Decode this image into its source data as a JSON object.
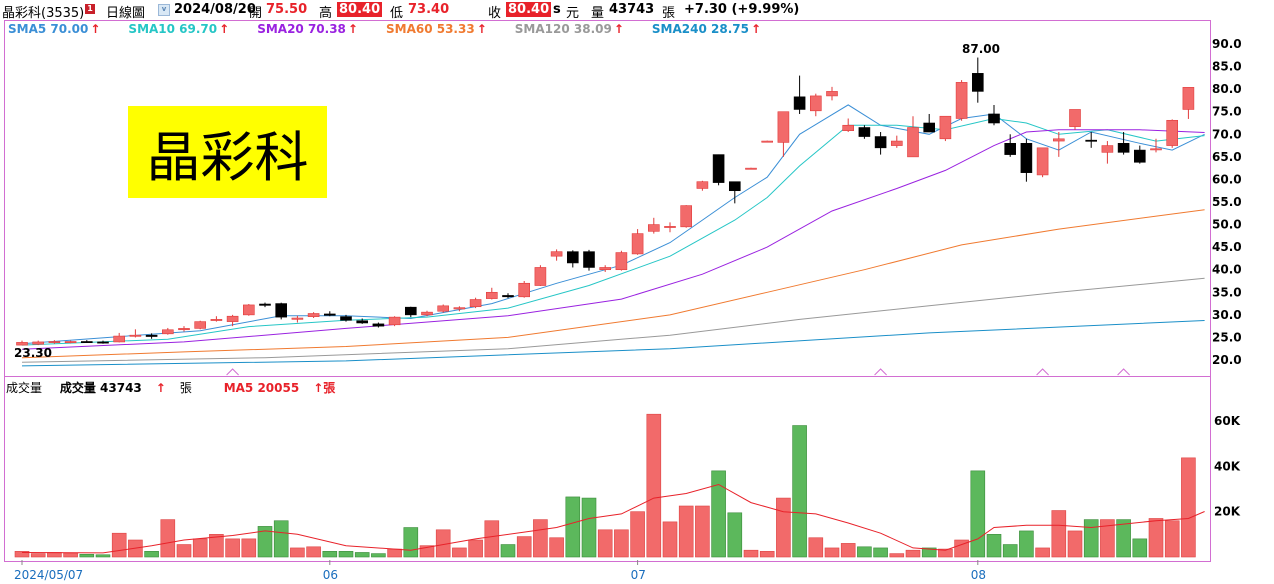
{
  "header": {
    "stock_name": "晶彩科(3535)",
    "chart_type_label": "日線圖",
    "date": "2024/08/20",
    "open_label": "開",
    "open_value": "75.50",
    "high_label": "高",
    "high_value": "80.40",
    "low_label": "低",
    "low_value": "73.40",
    "close_label": "收",
    "close_value": "80.40",
    "s_label": "s",
    "currency": "元",
    "volume_label": "量",
    "volume_value": "43743",
    "volume_unit": "張",
    "change": "+7.30 (+9.99%)"
  },
  "sma_legend": [
    {
      "label": "SMA5 70.00",
      "color": "#3b8fd6"
    },
    {
      "label": "SMA10 69.70",
      "color": "#26c6c6"
    },
    {
      "label": "SMA20 70.38",
      "color": "#9a22e0"
    },
    {
      "label": "SMA60 53.33",
      "color": "#f07a30"
    },
    {
      "label": "SMA120 38.09",
      "color": "#999999"
    },
    {
      "label": "SMA240 28.75",
      "color": "#1a8fc8"
    }
  ],
  "stamp": "晶彩科",
  "price_axis": [
    "90.0",
    "85.0",
    "80.0",
    "75.0",
    "70.0",
    "65.0",
    "60.0",
    "55.0",
    "50.0",
    "45.0",
    "40.0",
    "35.0",
    "30.0",
    "25.0",
    "20.0"
  ],
  "max_label": "87.00",
  "min_label": "23.30",
  "volume_legend": {
    "title": "成交量",
    "vol_label": "成交量 43743",
    "unit": "張",
    "ma5_label": "MA5 20055"
  },
  "volume_axis": [
    "60K",
    "40K",
    "20K"
  ],
  "date_axis": [
    "2024/05/07",
    "06",
    "07",
    "08"
  ],
  "chart_data": {
    "type": "candlestick",
    "ylim": [
      18.5,
      93
    ],
    "volume_ylim": [
      0,
      70000
    ],
    "candles": [
      {
        "o": 23.3,
        "h": 24.3,
        "l": 23.3,
        "c": 23.9,
        "v": 2500
      },
      {
        "o": 23.5,
        "h": 24.3,
        "l": 23.3,
        "c": 24.0,
        "v": 1500
      },
      {
        "o": 23.9,
        "h": 24.4,
        "l": 23.6,
        "c": 24.1,
        "v": 2000
      },
      {
        "o": 24.0,
        "h": 24.3,
        "l": 23.7,
        "c": 24.1,
        "v": 1800
      },
      {
        "o": 24.1,
        "h": 24.4,
        "l": 23.8,
        "c": 24.0,
        "v": 1200
      },
      {
        "o": 24.0,
        "h": 24.3,
        "l": 23.6,
        "c": 23.8,
        "v": 1000
      },
      {
        "o": 24.0,
        "h": 26.0,
        "l": 23.9,
        "c": 25.3,
        "v": 10500
      },
      {
        "o": 25.3,
        "h": 26.8,
        "l": 25.0,
        "c": 25.5,
        "v": 7500
      },
      {
        "o": 25.5,
        "h": 25.9,
        "l": 24.7,
        "c": 25.2,
        "v": 2500
      },
      {
        "o": 25.8,
        "h": 27.1,
        "l": 25.6,
        "c": 26.7,
        "v": 16500
      },
      {
        "o": 26.7,
        "h": 27.5,
        "l": 26.3,
        "c": 27.0,
        "v": 5500
      },
      {
        "o": 27.0,
        "h": 28.7,
        "l": 26.8,
        "c": 28.5,
        "v": 8000
      },
      {
        "o": 28.8,
        "h": 29.7,
        "l": 28.5,
        "c": 29.0,
        "v": 10000
      },
      {
        "o": 28.5,
        "h": 30.0,
        "l": 27.5,
        "c": 29.7,
        "v": 8000
      },
      {
        "o": 30.0,
        "h": 32.4,
        "l": 29.8,
        "c": 32.2,
        "v": 8000
      },
      {
        "o": 32.4,
        "h": 32.7,
        "l": 31.7,
        "c": 32.1,
        "v": 13500
      },
      {
        "o": 32.5,
        "h": 32.7,
        "l": 29.0,
        "c": 29.5,
        "v": 16000
      },
      {
        "o": 29.0,
        "h": 29.8,
        "l": 28.3,
        "c": 29.3,
        "v": 4000
      },
      {
        "o": 29.6,
        "h": 30.6,
        "l": 29.3,
        "c": 30.3,
        "v": 4500
      },
      {
        "o": 30.2,
        "h": 30.8,
        "l": 29.7,
        "c": 29.9,
        "v": 2500
      },
      {
        "o": 29.6,
        "h": 30.0,
        "l": 28.5,
        "c": 28.8,
        "v": 2500
      },
      {
        "o": 28.7,
        "h": 29.2,
        "l": 28.0,
        "c": 28.2,
        "v": 2000
      },
      {
        "o": 28.0,
        "h": 28.3,
        "l": 27.2,
        "c": 27.5,
        "v": 1500
      },
      {
        "o": 27.8,
        "h": 29.7,
        "l": 27.5,
        "c": 29.5,
        "v": 3500
      },
      {
        "o": 31.7,
        "h": 31.8,
        "l": 29.5,
        "c": 30.0,
        "v": 13000
      },
      {
        "o": 30.0,
        "h": 30.9,
        "l": 29.7,
        "c": 30.6,
        "v": 5000
      },
      {
        "o": 30.8,
        "h": 32.3,
        "l": 30.5,
        "c": 32.0,
        "v": 12000
      },
      {
        "o": 31.3,
        "h": 31.9,
        "l": 30.8,
        "c": 31.6,
        "v": 4000
      },
      {
        "o": 31.8,
        "h": 33.8,
        "l": 31.5,
        "c": 33.4,
        "v": 7500
      },
      {
        "o": 33.6,
        "h": 36.0,
        "l": 33.4,
        "c": 35.0,
        "v": 16000
      },
      {
        "o": 34.3,
        "h": 34.8,
        "l": 33.7,
        "c": 34.0,
        "v": 5500
      },
      {
        "o": 34.0,
        "h": 37.5,
        "l": 33.8,
        "c": 37.0,
        "v": 9000
      },
      {
        "o": 36.5,
        "h": 41.0,
        "l": 36.4,
        "c": 40.5,
        "v": 16500
      },
      {
        "o": 43.0,
        "h": 44.5,
        "l": 42.0,
        "c": 44.0,
        "v": 8500
      },
      {
        "o": 44.0,
        "h": 44.3,
        "l": 40.5,
        "c": 41.5,
        "v": 26500
      },
      {
        "o": 44.0,
        "h": 44.4,
        "l": 39.8,
        "c": 40.5,
        "v": 26000
      },
      {
        "o": 40.0,
        "h": 41.0,
        "l": 39.5,
        "c": 40.5,
        "v": 12000
      },
      {
        "o": 40.0,
        "h": 44.2,
        "l": 39.8,
        "c": 43.8,
        "v": 12000
      },
      {
        "o": 43.5,
        "h": 49.0,
        "l": 43.3,
        "c": 48.0,
        "v": 20000
      },
      {
        "o": 48.5,
        "h": 51.5,
        "l": 48.0,
        "c": 50.0,
        "v": 63000
      },
      {
        "o": 49.5,
        "h": 50.5,
        "l": 48.3,
        "c": 49.6,
        "v": 15500
      },
      {
        "o": 49.5,
        "h": 54.3,
        "l": 49.3,
        "c": 54.2,
        "v": 22500
      },
      {
        "o": 58.0,
        "h": 59.7,
        "l": 57.5,
        "c": 59.5,
        "v": 22500
      },
      {
        "o": 65.5,
        "h": 65.5,
        "l": 58.7,
        "c": 59.3,
        "v": 38000
      },
      {
        "o": 59.5,
        "h": 59.5,
        "l": 54.7,
        "c": 57.5,
        "v": 19500
      },
      {
        "o": 62.5,
        "h": 62.6,
        "l": 62.4,
        "c": 62.5,
        "v": 3000
      },
      {
        "o": 68.5,
        "h": 68.6,
        "l": 68.4,
        "c": 68.5,
        "v": 2500
      },
      {
        "o": 68.2,
        "h": 75.0,
        "l": 65.0,
        "c": 75.0,
        "v": 26000
      },
      {
        "o": 78.3,
        "h": 83.0,
        "l": 74.5,
        "c": 75.5,
        "v": 58000
      },
      {
        "o": 75.2,
        "h": 79.0,
        "l": 74.0,
        "c": 78.5,
        "v": 8500
      },
      {
        "o": 78.5,
        "h": 80.5,
        "l": 77.5,
        "c": 79.5,
        "v": 4000
      },
      {
        "o": 70.8,
        "h": 73.5,
        "l": 70.5,
        "c": 72.0,
        "v": 6000
      },
      {
        "o": 71.5,
        "h": 72.0,
        "l": 69.0,
        "c": 69.5,
        "v": 4500
      },
      {
        "o": 69.5,
        "h": 70.5,
        "l": 65.5,
        "c": 67.0,
        "v": 4000
      },
      {
        "o": 67.5,
        "h": 69.7,
        "l": 67.0,
        "c": 68.5,
        "v": 1500
      },
      {
        "o": 65.0,
        "h": 74.0,
        "l": 65.0,
        "c": 71.5,
        "v": 3000
      },
      {
        "o": 72.5,
        "h": 74.5,
        "l": 70.5,
        "c": 70.5,
        "v": 4000
      },
      {
        "o": 69.0,
        "h": 74.0,
        "l": 68.5,
        "c": 74.0,
        "v": 3500
      },
      {
        "o": 73.5,
        "h": 82.0,
        "l": 73.0,
        "c": 81.5,
        "v": 7500
      },
      {
        "o": 83.5,
        "h": 87.0,
        "l": 77.0,
        "c": 79.5,
        "v": 38000
      },
      {
        "o": 74.5,
        "h": 76.5,
        "l": 72.0,
        "c": 72.5,
        "v": 10000
      },
      {
        "o": 68.0,
        "h": 70.0,
        "l": 65.0,
        "c": 65.5,
        "v": 5500
      },
      {
        "o": 68.0,
        "h": 69.0,
        "l": 59.5,
        "c": 61.5,
        "v": 11500
      },
      {
        "o": 61.0,
        "h": 67.0,
        "l": 60.5,
        "c": 67.0,
        "v": 4000
      },
      {
        "o": 68.5,
        "h": 70.5,
        "l": 65.0,
        "c": 69.0,
        "v": 20500
      },
      {
        "o": 71.7,
        "h": 75.5,
        "l": 71.0,
        "c": 75.5,
        "v": 11500
      },
      {
        "o": 68.7,
        "h": 70.5,
        "l": 67.0,
        "c": 68.5,
        "v": 16500
      },
      {
        "o": 66.0,
        "h": 68.5,
        "l": 63.5,
        "c": 67.5,
        "v": 16500
      },
      {
        "o": 68.0,
        "h": 70.5,
        "l": 65.5,
        "c": 66.0,
        "v": 16500
      },
      {
        "o": 66.5,
        "h": 67.5,
        "l": 63.5,
        "c": 63.8,
        "v": 8000
      },
      {
        "o": 66.8,
        "h": 69.0,
        "l": 66.0,
        "c": 66.8,
        "v": 17000
      },
      {
        "o": 67.5,
        "h": 73.3,
        "l": 67.0,
        "c": 73.1,
        "v": 16000
      },
      {
        "o": 75.5,
        "h": 80.4,
        "l": 73.4,
        "c": 80.4,
        "v": 43743
      }
    ],
    "sma_series": {
      "SMA5": [
        [
          0,
          23.6
        ],
        [
          11,
          26.5
        ],
        [
          16,
          29.8
        ],
        [
          20,
          29.8
        ],
        [
          24,
          29.2
        ],
        [
          29,
          32.5
        ],
        [
          33,
          37.0
        ],
        [
          37,
          41.0
        ],
        [
          40,
          46.0
        ],
        [
          42,
          51.0
        ],
        [
          44,
          56.0
        ],
        [
          46,
          60.5
        ],
        [
          48,
          70.0
        ],
        [
          51,
          76.5
        ],
        [
          53,
          72.0
        ],
        [
          56,
          70.0
        ],
        [
          58,
          73.5
        ],
        [
          60,
          74.5
        ],
        [
          62,
          69.0
        ],
        [
          64,
          66.5
        ],
        [
          66,
          70.5
        ],
        [
          69,
          68.0
        ],
        [
          71,
          66.5
        ],
        [
          73,
          70.0
        ]
      ],
      "SMA10": [
        [
          0,
          23.3
        ],
        [
          9,
          24.6
        ],
        [
          14,
          27.4
        ],
        [
          20,
          28.8
        ],
        [
          25,
          29.5
        ],
        [
          30,
          31.5
        ],
        [
          35,
          36.5
        ],
        [
          40,
          43.0
        ],
        [
          44,
          51.0
        ],
        [
          46,
          56.0
        ],
        [
          48,
          63.0
        ],
        [
          51,
          72.0
        ],
        [
          54,
          72.0
        ],
        [
          57,
          71.0
        ],
        [
          60,
          73.5
        ],
        [
          62,
          72.5
        ],
        [
          64,
          70.0
        ],
        [
          67,
          71.0
        ],
        [
          70,
          68.5
        ],
        [
          73,
          69.7
        ]
      ],
      "SMA20": [
        [
          0,
          22.4
        ],
        [
          10,
          24.0
        ],
        [
          20,
          27.0
        ],
        [
          30,
          29.8
        ],
        [
          37,
          33.5
        ],
        [
          42,
          39.0
        ],
        [
          46,
          45.0
        ],
        [
          50,
          53.0
        ],
        [
          54,
          58.0
        ],
        [
          57,
          62.0
        ],
        [
          60,
          67.5
        ],
        [
          62,
          70.5
        ],
        [
          64,
          71.0
        ],
        [
          66,
          71.0
        ],
        [
          69,
          71.0
        ],
        [
          73,
          70.4
        ]
      ],
      "SMA60": [
        [
          0,
          20.5
        ],
        [
          10,
          21.8
        ],
        [
          20,
          23.0
        ],
        [
          30,
          25.0
        ],
        [
          40,
          30.0
        ],
        [
          46,
          35.0
        ],
        [
          52,
          40.0
        ],
        [
          58,
          45.5
        ],
        [
          64,
          49.0
        ],
        [
          73,
          53.3
        ]
      ],
      "SMA120": [
        [
          0,
          19.5
        ],
        [
          15,
          20.5
        ],
        [
          30,
          22.5
        ],
        [
          40,
          25.5
        ],
        [
          48,
          29.0
        ],
        [
          56,
          32.0
        ],
        [
          64,
          35.0
        ],
        [
          73,
          38.1
        ]
      ],
      "SMA240": [
        [
          0,
          18.7
        ],
        [
          20,
          19.8
        ],
        [
          40,
          22.5
        ],
        [
          56,
          26.0
        ],
        [
          73,
          28.75
        ]
      ]
    },
    "volume_ma5": [
      [
        0,
        2000
      ],
      [
        5,
        1800
      ],
      [
        8,
        5000
      ],
      [
        10,
        7500
      ],
      [
        13,
        9500
      ],
      [
        15,
        11500
      ],
      [
        17,
        10000
      ],
      [
        20,
        5000
      ],
      [
        24,
        3000
      ],
      [
        28,
        8000
      ],
      [
        31,
        11000
      ],
      [
        33,
        13000
      ],
      [
        35,
        17000
      ],
      [
        37,
        19000
      ],
      [
        39,
        26000
      ],
      [
        41,
        28000
      ],
      [
        43,
        32000
      ],
      [
        45,
        24000
      ],
      [
        47,
        20000
      ],
      [
        49,
        19000
      ],
      [
        51,
        15000
      ],
      [
        53,
        10500
      ],
      [
        55,
        4000
      ],
      [
        57,
        3000
      ],
      [
        59,
        8000
      ],
      [
        60,
        13000
      ],
      [
        62,
        14000
      ],
      [
        64,
        14000
      ],
      [
        66,
        13000
      ],
      [
        68,
        14500
      ],
      [
        70,
        16000
      ],
      [
        72,
        17000
      ],
      [
        73,
        20055
      ]
    ],
    "date_tick_indices": [
      0,
      19,
      38,
      59
    ]
  },
  "colors": {
    "up": "#f26a6a",
    "up_border": "#e23a3a",
    "down": "#000000",
    "volume_up": "#f26a6a",
    "volume_down": "#5cb85c",
    "volume_ma5": "#e8222a",
    "panel_border": "#d26ed2"
  }
}
